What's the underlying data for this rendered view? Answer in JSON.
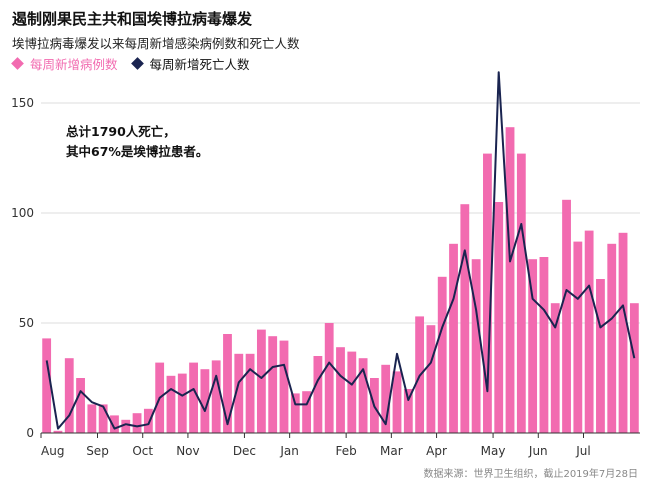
{
  "title": "遏制刚果民主共和国埃博拉病毒爆发",
  "subtitle": "埃博拉病毒爆发以来每周新增感染病例数和死亡人数",
  "source": "数据来源：世界卫生组织，截止2019年7月28日",
  "colors": {
    "cases": "#f26bb0",
    "deaths": "#1a2450",
    "grid": "#dcdcdc",
    "axis": "#333333"
  },
  "chart_data": {
    "type": "bar",
    "title": "遏制刚果民主共和国埃博拉病毒爆发",
    "subtitle": "埃博拉病毒爆发以来每周新增感染病例数和死亡人数",
    "xlabel": "",
    "ylabel": "",
    "ylim": [
      0,
      165
    ],
    "yticks": [
      0,
      50,
      100,
      150
    ],
    "grid": true,
    "legend_position": "top-left",
    "x_tick_labels": [
      {
        "label": "Aug",
        "week": 0
      },
      {
        "label": "Sep",
        "week": 5
      },
      {
        "label": "Oct",
        "week": 9
      },
      {
        "label": "Nov",
        "week": 13
      },
      {
        "label": "Dec",
        "week": 18
      },
      {
        "label": "Jan",
        "week": 22
      },
      {
        "label": "Feb",
        "week": 27
      },
      {
        "label": "Mar",
        "week": 31
      },
      {
        "label": "Apr",
        "week": 35
      },
      {
        "label": "May",
        "week": 40
      },
      {
        "label": "Jun",
        "week": 44
      },
      {
        "label": "Jul",
        "week": 48
      }
    ],
    "series": [
      {
        "name": "每周新增病例数",
        "type": "bar",
        "values": [
          43,
          1,
          34,
          25,
          13,
          13,
          8,
          6,
          9,
          11,
          32,
          26,
          27,
          32,
          29,
          33,
          45,
          36,
          36,
          47,
          44,
          42,
          18,
          19,
          35,
          50,
          39,
          37,
          34,
          25,
          31,
          28,
          20,
          53,
          49,
          71,
          86,
          104,
          79,
          127,
          105,
          139,
          127,
          79,
          80,
          59,
          106,
          87,
          92,
          70,
          86,
          91,
          59
        ]
      },
      {
        "name": "每周新增死亡人数",
        "type": "line",
        "values": [
          33,
          2,
          8,
          19,
          14,
          12,
          2,
          4,
          3,
          4,
          16,
          20,
          17,
          20,
          10,
          26,
          4,
          23,
          29,
          25,
          30,
          31,
          13,
          13,
          24,
          32,
          26,
          22,
          29,
          12,
          4,
          36,
          15,
          26,
          32,
          48,
          61,
          83,
          56,
          19,
          164,
          78,
          95,
          61,
          56,
          48,
          65,
          61,
          67,
          48,
          52,
          58,
          34
        ]
      }
    ],
    "annotation": {
      "lines": [
        "总计1790人死亡，",
        "其中67%是埃博拉患者。"
      ]
    }
  }
}
